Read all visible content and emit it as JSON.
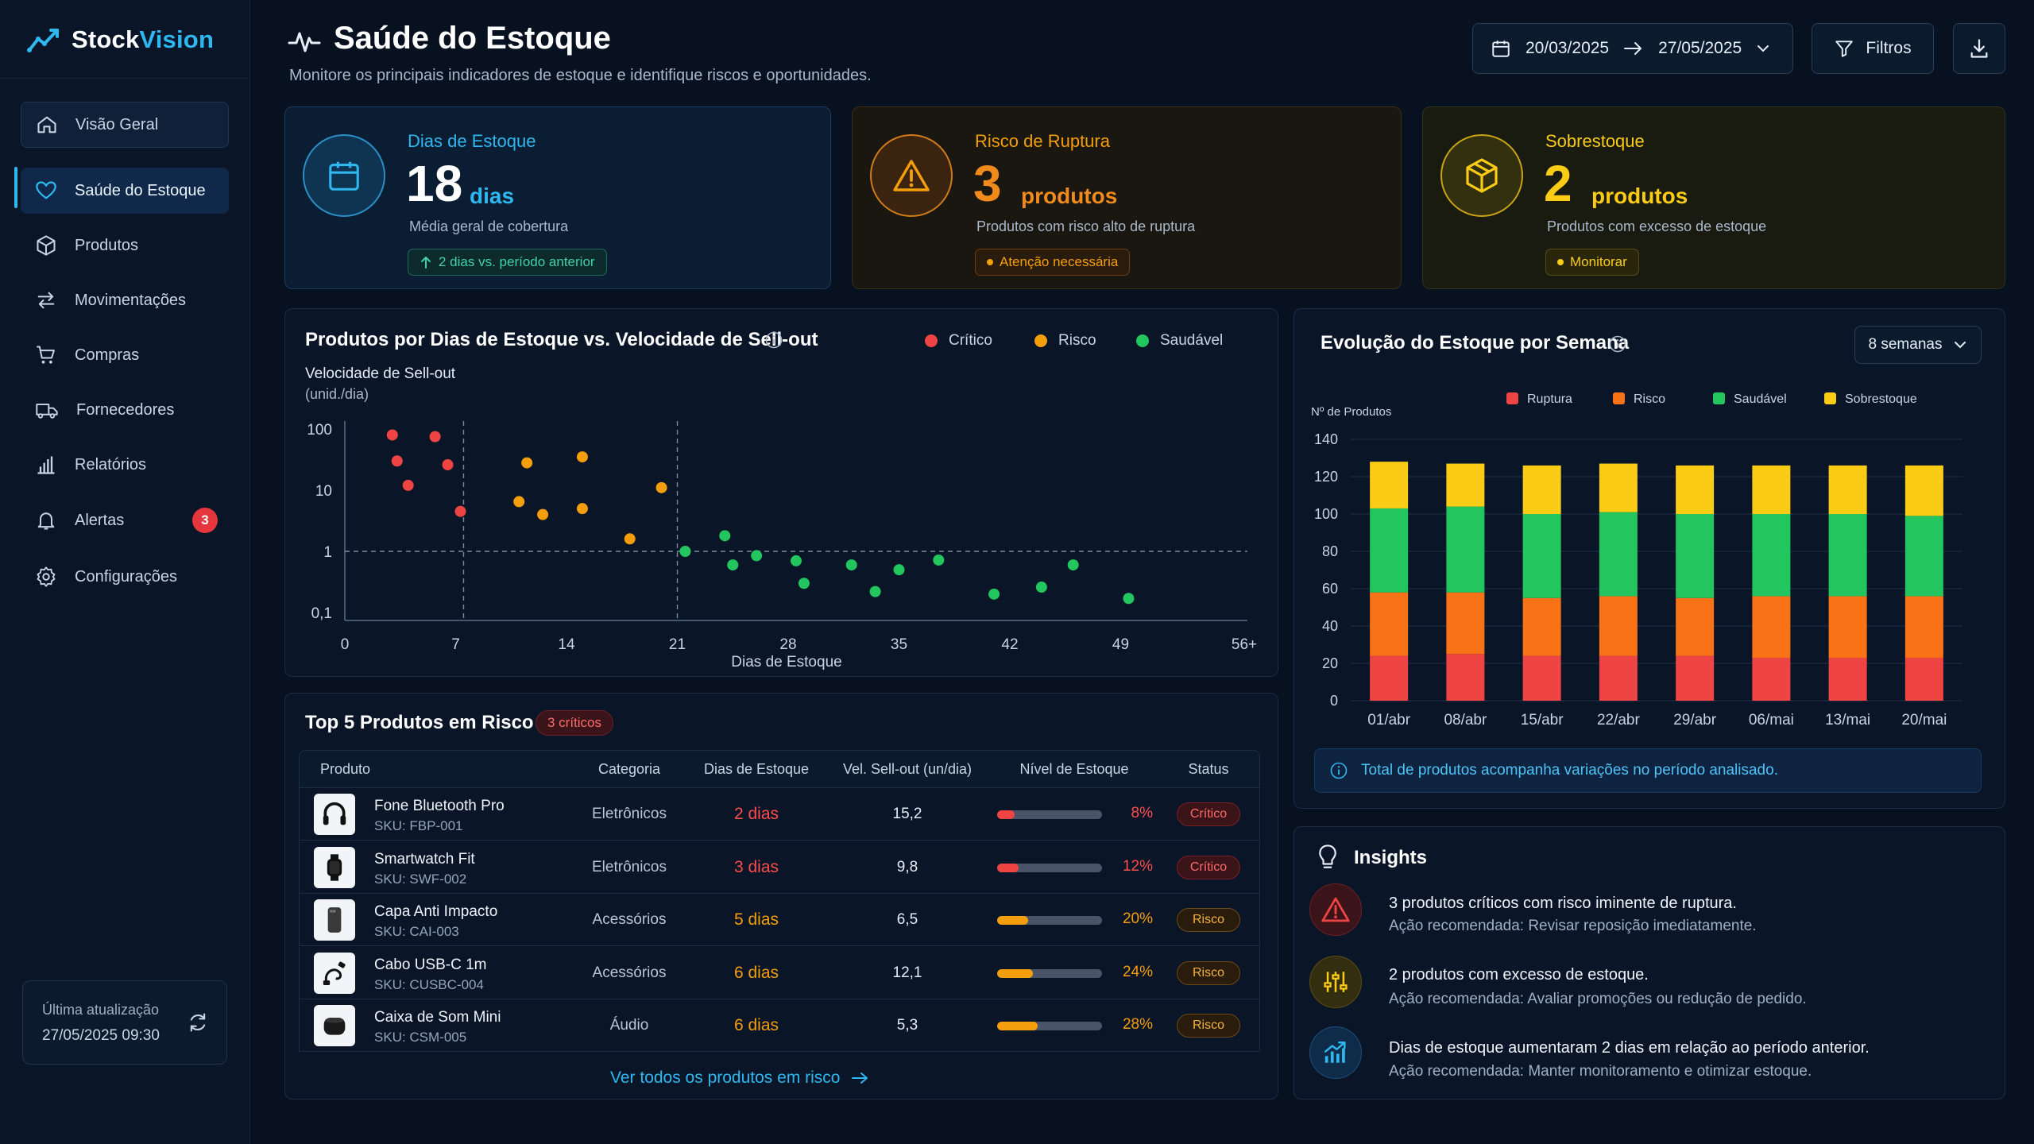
{
  "brand": {
    "name_a": "Stock",
    "name_b": "Vision"
  },
  "nav": {
    "items": [
      {
        "label": "Visão Geral"
      },
      {
        "label": "Saúde do Estoque"
      },
      {
        "label": "Produtos"
      },
      {
        "label": "Movimentações"
      },
      {
        "label": "Compras"
      },
      {
        "label": "Fornecedores"
      },
      {
        "label": "Relatórios"
      },
      {
        "label": "Alertas",
        "badge": "3"
      },
      {
        "label": "Configurações"
      }
    ]
  },
  "update": {
    "label": "Última atualização",
    "value": "27/05/2025 09:30"
  },
  "header": {
    "title": "Saúde do Estoque",
    "subtitle": "Monitore os principais indicadores de estoque e identifique riscos e oportunidades.",
    "date_from": "20/03/2025",
    "date_to": "27/05/2025",
    "filter_label": "Filtros"
  },
  "kpis": {
    "days": {
      "title": "Dias de Estoque",
      "value": "18",
      "unit": "dias",
      "desc": "Média geral de cobertura",
      "pill": "2 dias vs. período anterior"
    },
    "rupture": {
      "title": "Risco de Ruptura",
      "value": "3",
      "unit": "produtos",
      "desc": "Produtos com risco alto de ruptura",
      "pill": "Atenção necessária"
    },
    "over": {
      "title": "Sobrestoque",
      "value": "2",
      "unit": "produtos",
      "desc": "Produtos com excesso de estoque",
      "pill": "Monitorar"
    }
  },
  "scatter_panel": {
    "title": "Produtos por Dias de Estoque vs. Velocidade de Sell-out",
    "legend": [
      "Crítico",
      "Risco",
      "Saudável"
    ]
  },
  "bar_panel": {
    "title": "Evolução do Estoque por Semana",
    "period": "8 semanas",
    "note": "Total de produtos acompanha variações no período analisado."
  },
  "chart_data": [
    {
      "type": "scatter",
      "xlabel": "Dias de Estoque",
      "ylabel": "Velocidade de Sell-out",
      "ylabel2": "(unid./dia)",
      "x_ticks": [
        "0",
        "7",
        "14",
        "21",
        "28",
        "35",
        "42",
        "49",
        "56+"
      ],
      "y_ticks": [
        "100",
        "10",
        "1",
        "0,1"
      ],
      "ylim": [
        0.1,
        100
      ],
      "xlim": [
        0,
        56
      ],
      "y_scale": "log",
      "colors": {
        "Crítico": "#ef4444",
        "Risco": "#f59e0b",
        "Saudável": "#22c55e"
      },
      "series": [
        {
          "name": "Crítico",
          "points": [
            [
              3,
              80
            ],
            [
              3.3,
              30
            ],
            [
              4,
              12
            ],
            [
              5.7,
              75
            ],
            [
              6.5,
              26
            ],
            [
              7.3,
              4.5
            ]
          ]
        },
        {
          "name": "Risco",
          "points": [
            [
              11,
              6.5
            ],
            [
              11.5,
              28
            ],
            [
              12.5,
              4
            ],
            [
              15,
              35
            ],
            [
              15,
              5
            ],
            [
              18,
              1.6
            ],
            [
              20,
              11
            ]
          ]
        },
        {
          "name": "Saudável",
          "points": [
            [
              21.5,
              1
            ],
            [
              24,
              1.8
            ],
            [
              24.5,
              0.6
            ],
            [
              26,
              0.85
            ],
            [
              28.5,
              0.7
            ],
            [
              29,
              0.3
            ],
            [
              32,
              0.6
            ],
            [
              33.5,
              0.22
            ],
            [
              35,
              0.5
            ],
            [
              37.5,
              0.72
            ],
            [
              41,
              0.2
            ],
            [
              44,
              0.26
            ],
            [
              46,
              0.6
            ],
            [
              49.5,
              0.17
            ]
          ]
        }
      ]
    },
    {
      "type": "bar",
      "stacked": true,
      "ylabel": "Nº de Produtos",
      "ylim": [
        0,
        140
      ],
      "y_ticks": [
        "0",
        "20",
        "40",
        "60",
        "80",
        "100",
        "120",
        "140"
      ],
      "categories": [
        "01/abr",
        "08/abr",
        "15/abr",
        "22/abr",
        "29/abr",
        "06/mai",
        "13/mai",
        "20/mai"
      ],
      "series": [
        {
          "name": "Ruptura",
          "color": "#ef4444",
          "values": [
            24,
            25,
            24,
            24,
            24,
            23,
            23,
            23
          ]
        },
        {
          "name": "Risco",
          "color": "#f97316",
          "values": [
            34,
            33,
            31,
            32,
            31,
            33,
            33,
            33
          ]
        },
        {
          "name": "Saudável",
          "color": "#22c55e",
          "values": [
            45,
            46,
            45,
            45,
            45,
            44,
            44,
            43
          ]
        },
        {
          "name": "Sobrestoque",
          "color": "#facc15",
          "values": [
            25,
            23,
            26,
            26,
            26,
            26,
            26,
            27
          ]
        }
      ]
    }
  ],
  "table": {
    "title": "Top 5 Produtos em Risco",
    "badge": "3 críticos",
    "headers": [
      "Produto",
      "Categoria",
      "Dias de Estoque",
      "Vel. Sell-out (un/dia)",
      "Nível de Estoque",
      "Status"
    ],
    "rows": [
      {
        "name": "Fone Bluetooth Pro",
        "sku": "SKU: FBP-001",
        "cat": "Eletrônicos",
        "days": "2 dias",
        "vel": "15,2",
        "level": 8,
        "pct": "8%",
        "status": "Crítico",
        "tone": "crit",
        "icon": "headphones-icon"
      },
      {
        "name": "Smartwatch Fit",
        "sku": "SKU: SWF-002",
        "cat": "Eletrônicos",
        "days": "3 dias",
        "vel": "9,8",
        "level": 12,
        "pct": "12%",
        "status": "Crítico",
        "tone": "crit",
        "icon": "smartwatch-icon"
      },
      {
        "name": "Capa Anti Impacto",
        "sku": "SKU: CAI-003",
        "cat": "Acessórios",
        "days": "5 dias",
        "vel": "6,5",
        "level": 20,
        "pct": "20%",
        "status": "Risco",
        "tone": "risk",
        "icon": "phone-case-icon"
      },
      {
        "name": "Cabo USB-C 1m",
        "sku": "SKU: CUSBC-004",
        "cat": "Acessórios",
        "days": "6 dias",
        "vel": "12,1",
        "level": 24,
        "pct": "24%",
        "status": "Risco",
        "tone": "risk",
        "icon": "cable-icon"
      },
      {
        "name": "Caixa de Som Mini",
        "sku": "SKU: CSM-005",
        "cat": "Áudio",
        "days": "6 dias",
        "vel": "5,3",
        "level": 28,
        "pct": "28%",
        "status": "Risco",
        "tone": "risk",
        "icon": "speaker-icon"
      }
    ],
    "link": "Ver todos os produtos em risco"
  },
  "insights": {
    "title": "Insights",
    "items": [
      {
        "title": "3 produtos críticos com risco iminente de ruptura.",
        "sub": "Ação recomendada: Revisar reposição imediatamente."
      },
      {
        "title": "2 produtos com excesso de estoque.",
        "sub": "Ação recomendada: Avaliar promoções ou redução de pedido."
      },
      {
        "title": "Dias de estoque aumentaram 2 dias em relação ao período anterior.",
        "sub": "Ação recomendada: Manter monitoramento e otimizar estoque."
      }
    ]
  },
  "colors": {
    "accent": "#2fb7f0",
    "critical": "#ef4444",
    "risk": "#f59e0b",
    "healthy": "#22c55e",
    "over": "#facc15"
  }
}
